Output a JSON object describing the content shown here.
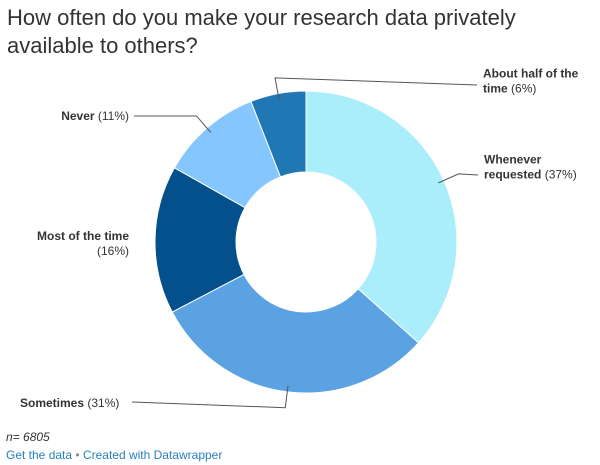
{
  "chart_data": {
    "type": "pie",
    "title": "How often do you make your research data privately available to others?",
    "series": [
      {
        "name": "Whenever requested",
        "label_lines": [
          "Whenever",
          "requested"
        ],
        "value": 37,
        "value_label": "(37%)",
        "color": "#aaeefc"
      },
      {
        "name": "Sometimes",
        "label_lines": [
          "Sometimes"
        ],
        "value": 31,
        "value_label": "(31%)",
        "color": "#5aa2e2"
      },
      {
        "name": "Most of the time",
        "label_lines": [
          "Most of the time"
        ],
        "value": 16,
        "value_label": "(16%)",
        "color": "#03508c"
      },
      {
        "name": "Never",
        "label_lines": [
          "Never"
        ],
        "value": 11,
        "value_label": "(11%)",
        "color": "#86c6ff"
      },
      {
        "name": "About half of the time",
        "label_lines": [
          "About half of the",
          "time"
        ],
        "value": 6,
        "value_label": "(6%)",
        "color": "#1f77b4"
      }
    ]
  },
  "note": "n= 6805",
  "footer": {
    "get_data": "Get the data",
    "separator": "•",
    "created_with": "Created with Datawrapper"
  }
}
